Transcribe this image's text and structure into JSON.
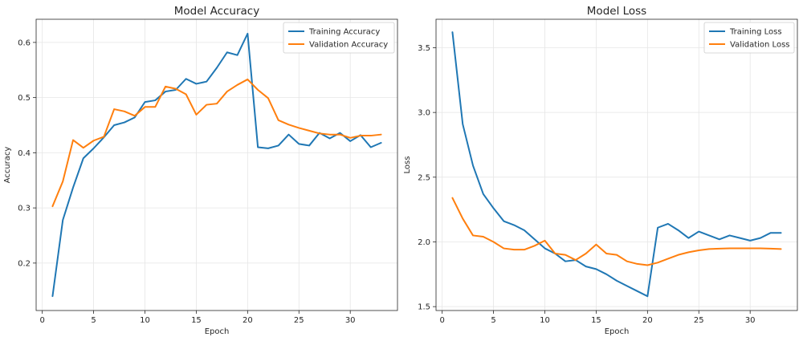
{
  "chart_data": [
    {
      "type": "line",
      "title": "Model Accuracy",
      "xlabel": "Epoch",
      "ylabel": "Accuracy",
      "xlim": [
        -0.6,
        34.6
      ],
      "ylim": [
        0.114,
        0.642
      ],
      "xticks": [
        0,
        5,
        10,
        15,
        20,
        25,
        30
      ],
      "yticks": [
        0.2,
        0.3,
        0.4,
        0.5,
        0.6
      ],
      "ytick_labels": [
        "0.2",
        "0.3",
        "0.4",
        "0.5",
        "0.6"
      ],
      "grid": true,
      "legend_position": "top-right",
      "x": [
        1,
        2,
        3,
        4,
        5,
        6,
        7,
        8,
        9,
        10,
        11,
        12,
        13,
        14,
        15,
        16,
        17,
        18,
        19,
        20,
        21,
        22,
        23,
        24,
        25,
        26,
        27,
        28,
        29,
        30,
        31,
        32,
        33
      ],
      "series": [
        {
          "name": "Training Accuracy",
          "color": "#1f77b4",
          "values": [
            0.14,
            0.278,
            0.337,
            0.39,
            0.408,
            0.428,
            0.45,
            0.455,
            0.464,
            0.492,
            0.495,
            0.511,
            0.514,
            0.534,
            0.525,
            0.529,
            0.554,
            0.582,
            0.577,
            0.616,
            0.41,
            0.408,
            0.413,
            0.433,
            0.416,
            0.413,
            0.436,
            0.426,
            0.436,
            0.421,
            0.432,
            0.41,
            0.418
          ]
        },
        {
          "name": "Validation Accuracy",
          "color": "#ff7f0e",
          "values": [
            0.303,
            0.348,
            0.423,
            0.409,
            0.422,
            0.429,
            0.479,
            0.475,
            0.467,
            0.483,
            0.483,
            0.52,
            0.516,
            0.506,
            0.469,
            0.487,
            0.489,
            0.511,
            0.523,
            0.533,
            0.514,
            0.499,
            0.459,
            0.451,
            0.445,
            0.44,
            0.435,
            0.433,
            0.433,
            0.427,
            0.431,
            0.431,
            0.433
          ]
        }
      ]
    },
    {
      "type": "line",
      "title": "Model Loss",
      "xlabel": "Epoch",
      "ylabel": "Loss",
      "xlim": [
        -0.6,
        34.6
      ],
      "ylim": [
        1.47,
        3.72
      ],
      "xticks": [
        0,
        5,
        10,
        15,
        20,
        25,
        30
      ],
      "yticks": [
        1.5,
        2.0,
        2.5,
        3.0,
        3.5
      ],
      "ytick_labels": [
        "1.5",
        "2.0",
        "2.5",
        "3.0",
        "3.5"
      ],
      "grid": true,
      "legend_position": "top-right",
      "x": [
        1,
        2,
        3,
        4,
        5,
        6,
        7,
        8,
        9,
        10,
        11,
        12,
        13,
        14,
        15,
        16,
        17,
        18,
        19,
        20,
        21,
        22,
        23,
        24,
        25,
        26,
        27,
        28,
        29,
        30,
        31,
        32,
        33
      ],
      "series": [
        {
          "name": "Training Loss",
          "color": "#1f77b4",
          "values": [
            3.62,
            2.91,
            2.59,
            2.37,
            2.26,
            2.16,
            2.13,
            2.09,
            2.02,
            1.95,
            1.91,
            1.85,
            1.86,
            1.81,
            1.79,
            1.75,
            1.7,
            1.66,
            1.62,
            1.58,
            2.11,
            2.14,
            2.09,
            2.03,
            2.08,
            2.05,
            2.02,
            2.05,
            2.03,
            2.01,
            2.03,
            2.07,
            2.07
          ]
        },
        {
          "name": "Validation Loss",
          "color": "#ff7f0e",
          "values": [
            2.34,
            2.18,
            2.05,
            2.04,
            2.0,
            1.95,
            1.94,
            1.94,
            1.97,
            2.01,
            1.91,
            1.9,
            1.86,
            1.91,
            1.98,
            1.91,
            1.9,
            1.85,
            1.83,
            1.82,
            1.84,
            1.87,
            1.9,
            1.92,
            1.935,
            1.945,
            1.948,
            1.95,
            1.95,
            1.95,
            1.95,
            1.948,
            1.945
          ]
        }
      ]
    }
  ]
}
